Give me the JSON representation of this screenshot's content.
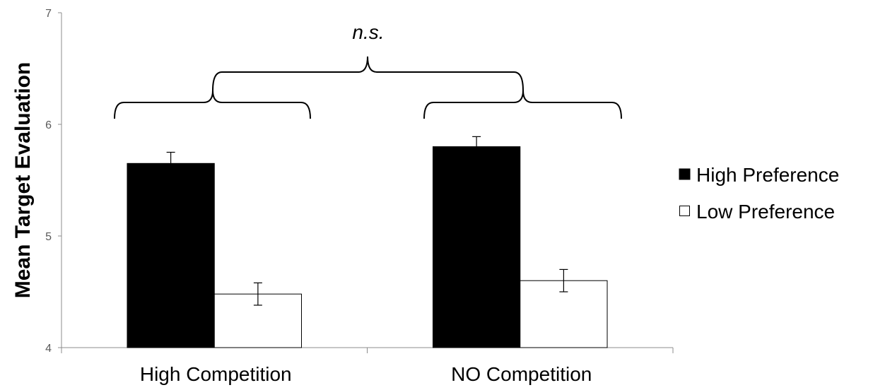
{
  "chart_data": {
    "type": "bar",
    "categories": [
      "High Competition",
      "NO Competition"
    ],
    "series": [
      {
        "name": "High Preference",
        "values": [
          5.65,
          5.8
        ],
        "errors": [
          0.1,
          0.09
        ],
        "color": "#000000"
      },
      {
        "name": "Low Preference",
        "values": [
          4.48,
          4.6
        ],
        "errors": [
          0.1,
          0.1
        ],
        "color": "#ffffff"
      }
    ],
    "xlabel": "",
    "ylabel": "Mean Target Evaluation",
    "ylim": [
      4,
      7
    ],
    "yticks": [
      "4",
      "5",
      "6",
      "7"
    ],
    "legend_position": "right",
    "grid": false,
    "annotation": "n.s."
  }
}
